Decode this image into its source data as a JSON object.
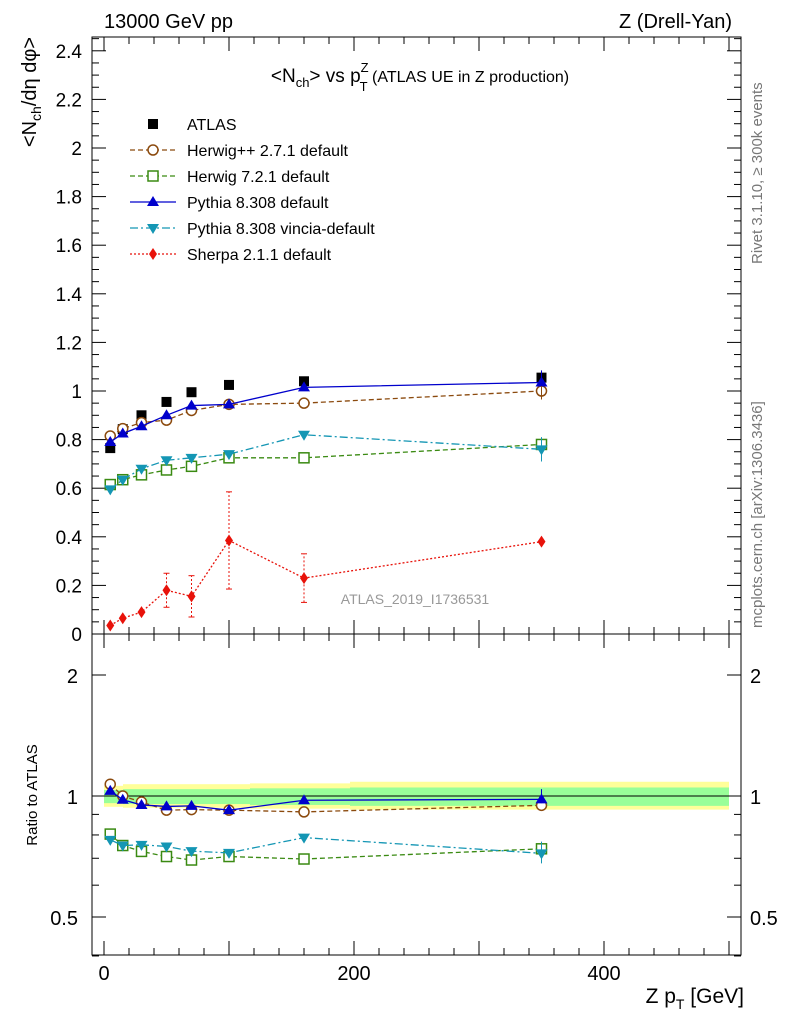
{
  "header": {
    "left": "13000 GeV pp",
    "right": "Z (Drell-Yan)"
  },
  "side_text": {
    "rivet": "Rivet 3.1.10, ≥ 300k events",
    "mcplots": "mcplots.cern.ch [arXiv:1306.3436]"
  },
  "chart_data": {
    "type": "line",
    "title": "<N_ch> vs p_T^Z (ATLAS UE in Z production)",
    "title_parts": {
      "pre": "<N",
      "sub1": "ch",
      "mid": "> vs p",
      "sup": "Z",
      "sub2": "T",
      "post": " (ATLAS UE in Z production)"
    },
    "analysis_label": "ATLAS_2019_I1736531",
    "xlabel": "Z p_T [GeV]",
    "xlabel_parts": {
      "pre": "Z p",
      "sub": "T",
      "post": " [GeV]"
    },
    "ylabel": "<N_ch/dη dφ>",
    "ylabel_parts": {
      "pre": "<N",
      "sub": "ch",
      "post": "/dη dφ>"
    },
    "ratio_ylabel": "Ratio to ATLAS",
    "xlim": [
      -10,
      510
    ],
    "ylim": [
      0,
      2.45
    ],
    "ratio_ylim": [
      0.35,
      2.3
    ],
    "ratio_log": true,
    "x_ticks": [
      "0",
      "200",
      "400"
    ],
    "y_ticks": [
      "0",
      "0.2",
      "0.4",
      "0.6",
      "0.8",
      "1",
      "1.2",
      "1.4",
      "1.6",
      "1.8",
      "2",
      "2.2",
      "2.4"
    ],
    "ratio_ticks": [
      "0.5",
      "1",
      "2"
    ],
    "legend_position": "top-left",
    "x": [
      5,
      15,
      30,
      50,
      70,
      100,
      160,
      350
    ],
    "series": [
      {
        "name": "ATLAS",
        "color": "#000000",
        "marker": "square",
        "line": "none",
        "values": [
          0.765,
          0.843,
          0.9,
          0.955,
          0.995,
          1.025,
          1.04,
          1.055
        ],
        "ratio": [
          1,
          1,
          1,
          1,
          1,
          1,
          1,
          1
        ]
      },
      {
        "name": "Herwig++ 2.7.1 default",
        "color": "#8b4a0e",
        "marker": "circle-open",
        "line": "dashed",
        "values": [
          0.815,
          0.845,
          0.87,
          0.88,
          0.92,
          0.945,
          0.95,
          1.0
        ],
        "ratio": [
          1.07,
          1.0,
          0.966,
          0.922,
          0.925,
          0.922,
          0.913,
          0.948
        ]
      },
      {
        "name": "Herwig 7.2.1 default",
        "color": "#3a8a12",
        "marker": "square-open",
        "line": "dashed",
        "values": [
          0.615,
          0.635,
          0.655,
          0.675,
          0.69,
          0.725,
          0.725,
          0.78
        ],
        "ratio": [
          0.804,
          0.753,
          0.728,
          0.707,
          0.693,
          0.707,
          0.697,
          0.739
        ]
      },
      {
        "name": "Pythia 8.308 default",
        "color": "#0000cc",
        "marker": "triangle-up",
        "line": "solid",
        "values": [
          0.79,
          0.825,
          0.855,
          0.9,
          0.94,
          0.945,
          1.015,
          1.035
        ],
        "ratio": [
          1.03,
          0.979,
          0.95,
          0.942,
          0.945,
          0.922,
          0.976,
          0.981
        ]
      },
      {
        "name": "Pythia 8.308 vincia-default",
        "color": "#1496b4",
        "marker": "triangle-down",
        "line": "dashdot",
        "values": [
          0.595,
          0.635,
          0.68,
          0.715,
          0.725,
          0.74,
          0.82,
          0.76
        ],
        "ratio": [
          0.778,
          0.753,
          0.756,
          0.749,
          0.729,
          0.722,
          0.788,
          0.72
        ]
      },
      {
        "name": "Sherpa 2.1.1 default",
        "color": "#e8120a",
        "marker": "diamond",
        "line": "dotted",
        "values": [
          0.035,
          0.065,
          0.09,
          0.18,
          0.155,
          0.385,
          0.23,
          0.38
        ],
        "ratio": null
      }
    ]
  }
}
